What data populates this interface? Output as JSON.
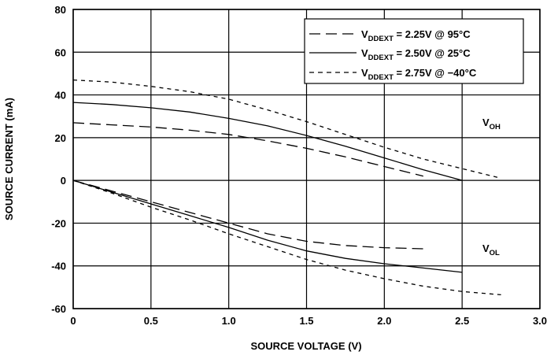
{
  "chart_data": {
    "type": "line",
    "xlabel": "SOURCE VOLTAGE (V)",
    "ylabel": "SOURCE CURRENT (mA)",
    "xlim": [
      0,
      3.0
    ],
    "ylim": [
      -60,
      80
    ],
    "x_ticks": [
      "0",
      "0.5",
      "1.0",
      "1.5",
      "2.0",
      "2.5",
      "3.0"
    ],
    "y_ticks": [
      "80",
      "60",
      "40",
      "20",
      "0",
      "-20",
      "-40",
      "-60"
    ],
    "grid": true,
    "legend_position": "top-right",
    "annotations": [
      {
        "main": "V",
        "sub": "OH"
      },
      {
        "main": "V",
        "sub": "OL"
      }
    ],
    "series": [
      {
        "name_main": "V",
        "name_sub": "DDEXT",
        "name_rest": " = 2.25V @ 95°C",
        "style": "long-dash",
        "curves": [
          {
            "x": [
              0,
              0.25,
              0.5,
              0.75,
              1.0,
              1.25,
              1.5,
              1.75,
              2.0,
              2.25
            ],
            "y": [
              27,
              26,
              25,
              23.5,
              21.5,
              18.5,
              15,
              11,
              6.5,
              2
            ]
          },
          {
            "x": [
              0,
              0.25,
              0.5,
              0.75,
              1.0,
              1.25,
              1.5,
              1.75,
              2.0,
              2.25
            ],
            "y": [
              0,
              -5,
              -10,
              -15,
              -20,
              -25,
              -28.5,
              -30.5,
              -31.5,
              -32
            ]
          }
        ]
      },
      {
        "name_main": "V",
        "name_sub": "DDEXT",
        "name_rest": " = 2.50V @ 25°C",
        "style": "solid",
        "curves": [
          {
            "x": [
              0,
              0.25,
              0.5,
              0.75,
              1.0,
              1.25,
              1.5,
              1.75,
              2.0,
              2.25,
              2.5
            ],
            "y": [
              36.5,
              35.5,
              34,
              32,
              29,
              25.5,
              21,
              16,
              10.5,
              5,
              0
            ]
          },
          {
            "x": [
              0,
              0.25,
              0.5,
              0.75,
              1.0,
              1.25,
              1.5,
              1.75,
              2.0,
              2.25,
              2.5
            ],
            "y": [
              0,
              -5.5,
              -11,
              -16.5,
              -22,
              -28,
              -33,
              -36.5,
              -39,
              -41,
              -43
            ]
          }
        ]
      },
      {
        "name_main": "V",
        "name_sub": "DDEXT",
        "name_rest": " = 2.75V @ −40°C",
        "style": "short-dash",
        "curves": [
          {
            "x": [
              0,
              0.25,
              0.5,
              0.75,
              1.0,
              1.25,
              1.5,
              1.75,
              2.0,
              2.25,
              2.5,
              2.75
            ],
            "y": [
              47,
              46,
              44,
              41.5,
              38,
              33,
              27.5,
              21.5,
              15.5,
              10,
              5.5,
              1
            ]
          },
          {
            "x": [
              0,
              0.25,
              0.5,
              0.75,
              1.0,
              1.25,
              1.5,
              1.75,
              2.0,
              2.25,
              2.5,
              2.75
            ],
            "y": [
              0,
              -6,
              -12.5,
              -18.5,
              -25,
              -31,
              -37,
              -42,
              -46,
              -49.5,
              -52,
              -53.5
            ]
          }
        ]
      }
    ]
  }
}
